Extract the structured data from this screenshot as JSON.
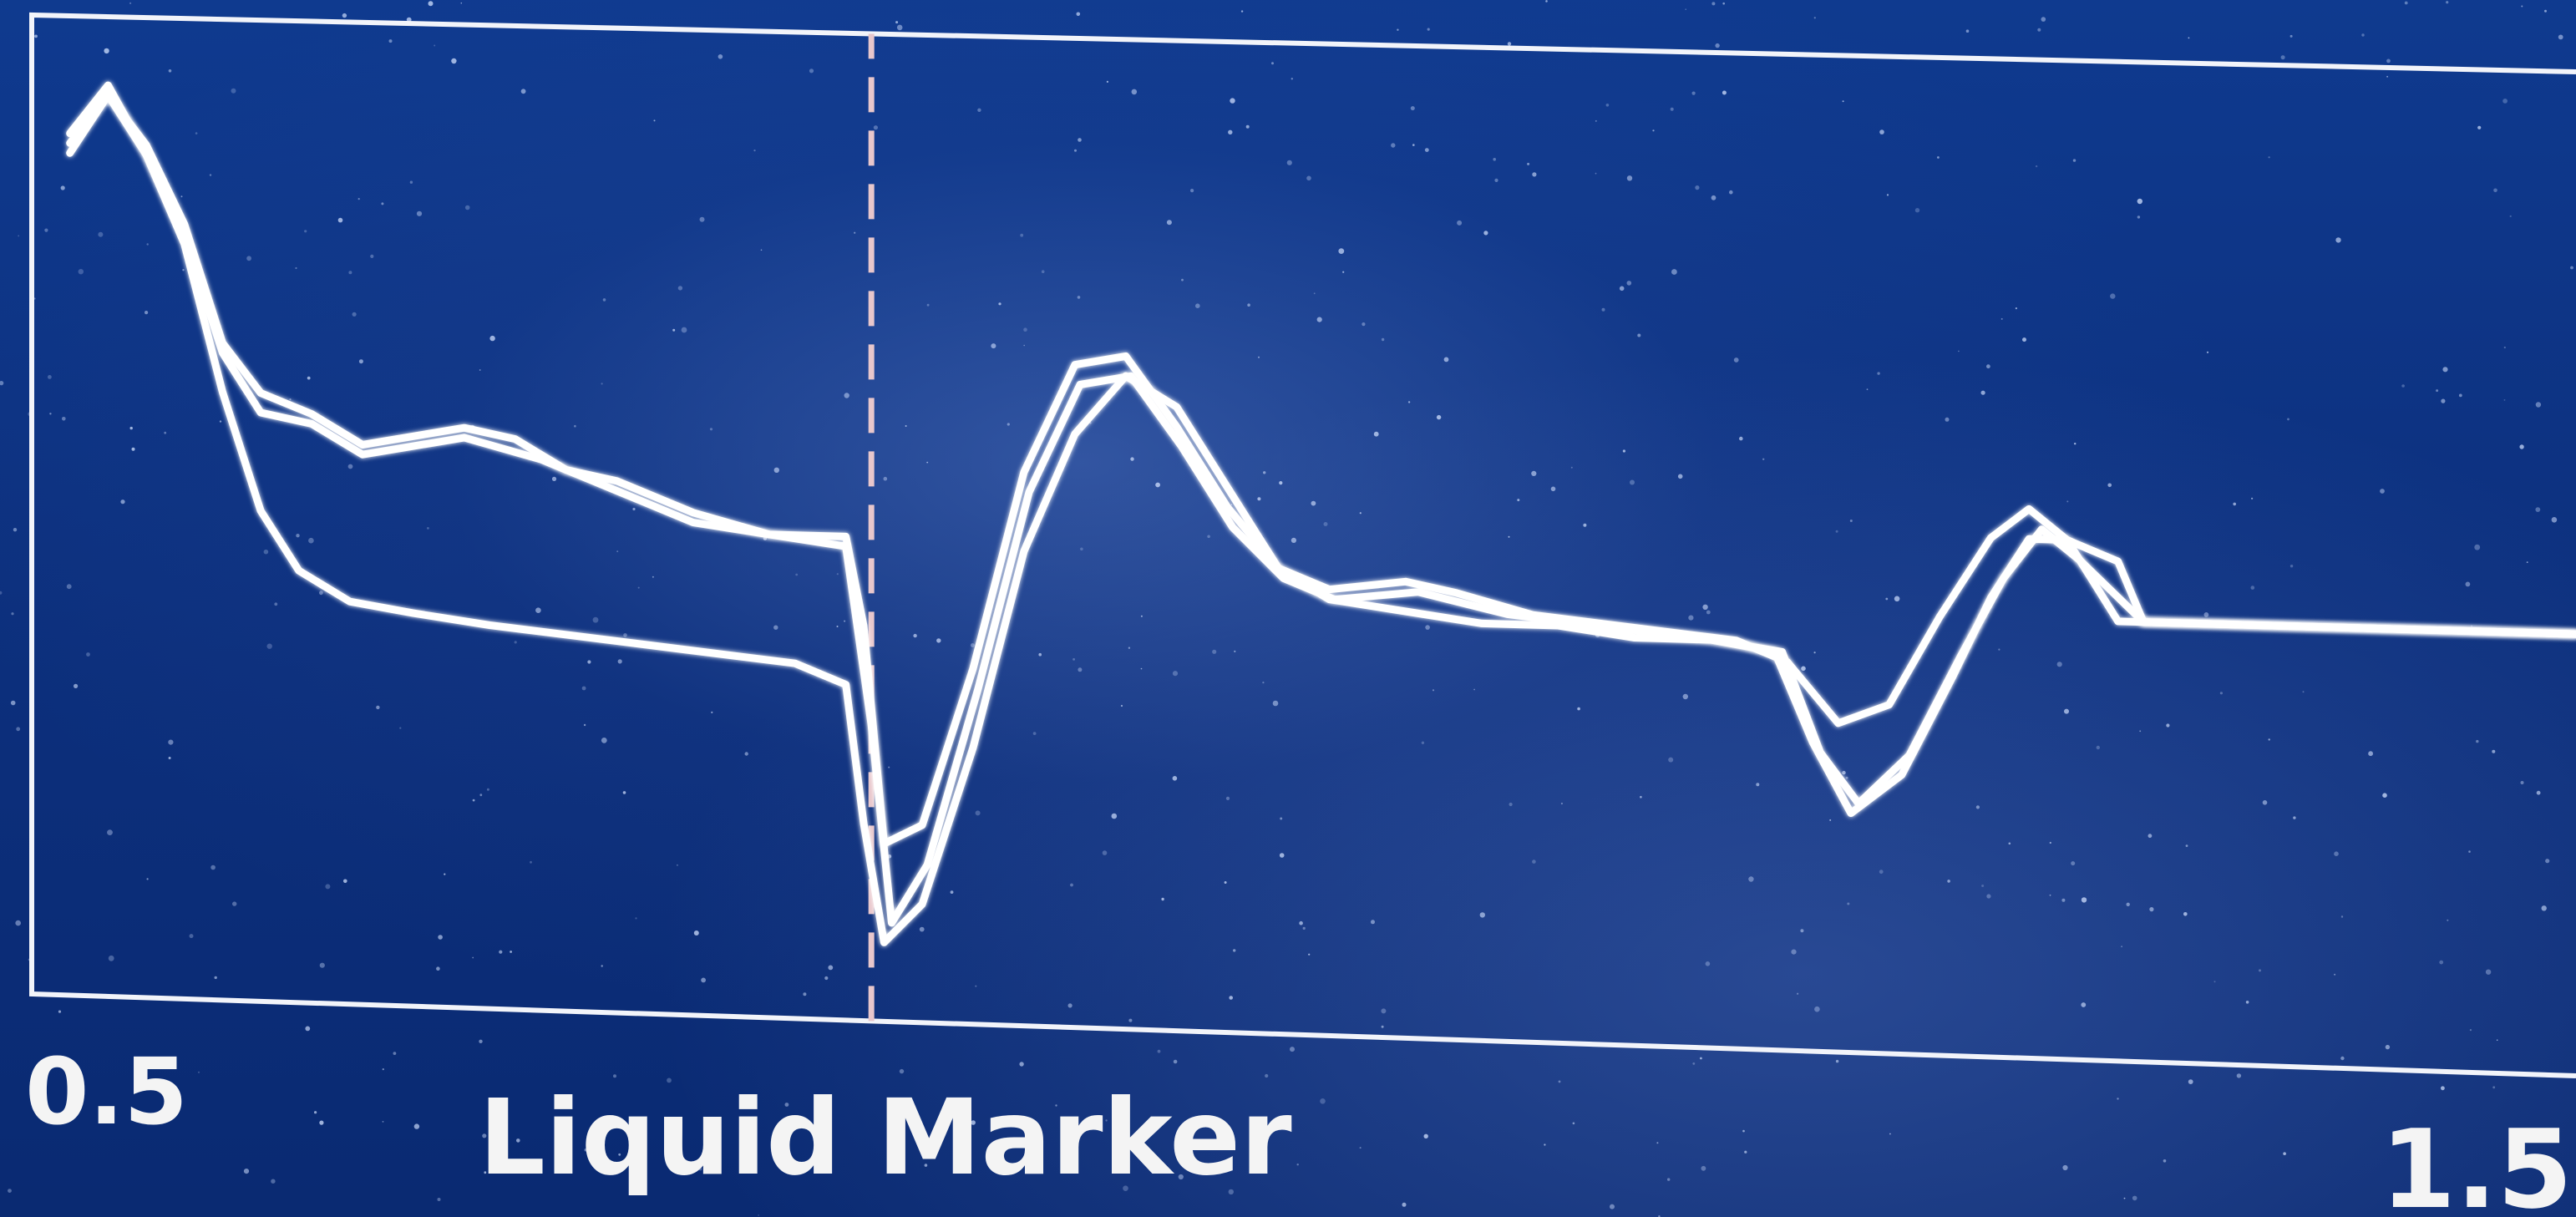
{
  "chart_data": {
    "type": "line",
    "title": "",
    "xlabel": "Liquid Marker",
    "xlim": [
      0.5,
      1.5
    ],
    "x_tick_labels": [
      "0.5",
      "1.5"
    ],
    "grid": false,
    "marker_line": {
      "x": 0.83,
      "style": "dashed",
      "color": "#e8c7cc"
    },
    "line_color": "#ffffff",
    "series": [
      {
        "points": [
          [
            0.515,
            0.88
          ],
          [
            0.53,
            0.93
          ],
          [
            0.545,
            0.86
          ],
          [
            0.56,
            0.77
          ],
          [
            0.575,
            0.62
          ],
          [
            0.59,
            0.5
          ],
          [
            0.605,
            0.44
          ],
          [
            0.625,
            0.41
          ],
          [
            0.65,
            0.4
          ],
          [
            0.68,
            0.39
          ],
          [
            0.72,
            0.38
          ],
          [
            0.76,
            0.37
          ],
          [
            0.8,
            0.36
          ],
          [
            0.82,
            0.34
          ],
          [
            0.827,
            0.2
          ],
          [
            0.835,
            0.08
          ],
          [
            0.85,
            0.12
          ],
          [
            0.87,
            0.28
          ],
          [
            0.89,
            0.48
          ],
          [
            0.91,
            0.6
          ],
          [
            0.93,
            0.66
          ],
          [
            0.95,
            0.63
          ],
          [
            0.97,
            0.55
          ],
          [
            0.99,
            0.47
          ],
          [
            1.01,
            0.44
          ],
          [
            1.04,
            0.43
          ],
          [
            1.07,
            0.42
          ],
          [
            1.1,
            0.42
          ],
          [
            1.13,
            0.41
          ],
          [
            1.16,
            0.41
          ],
          [
            1.185,
            0.4
          ],
          [
            1.2,
            0.31
          ],
          [
            1.215,
            0.24
          ],
          [
            1.235,
            0.28
          ],
          [
            1.255,
            0.38
          ],
          [
            1.27,
            0.46
          ],
          [
            1.285,
            0.52
          ],
          [
            1.3,
            0.52
          ],
          [
            1.32,
            0.44
          ],
          [
            1.35,
            0.44
          ],
          [
            1.4,
            0.44
          ],
          [
            1.45,
            0.44
          ],
          [
            1.5,
            0.44
          ]
        ]
      },
      {
        "points": [
          [
            0.515,
            0.86
          ],
          [
            0.53,
            0.92
          ],
          [
            0.545,
            0.87
          ],
          [
            0.56,
            0.79
          ],
          [
            0.575,
            0.67
          ],
          [
            0.59,
            0.62
          ],
          [
            0.61,
            0.6
          ],
          [
            0.63,
            0.57
          ],
          [
            0.65,
            0.58
          ],
          [
            0.67,
            0.59
          ],
          [
            0.69,
            0.58
          ],
          [
            0.71,
            0.55
          ],
          [
            0.73,
            0.54
          ],
          [
            0.76,
            0.51
          ],
          [
            0.79,
            0.49
          ],
          [
            0.82,
            0.49
          ],
          [
            0.827,
            0.4
          ],
          [
            0.835,
            0.18
          ],
          [
            0.85,
            0.2
          ],
          [
            0.87,
            0.36
          ],
          [
            0.89,
            0.56
          ],
          [
            0.91,
            0.67
          ],
          [
            0.93,
            0.68
          ],
          [
            0.95,
            0.61
          ],
          [
            0.97,
            0.53
          ],
          [
            0.99,
            0.47
          ],
          [
            1.01,
            0.45
          ],
          [
            1.04,
            0.46
          ],
          [
            1.06,
            0.45
          ],
          [
            1.09,
            0.43
          ],
          [
            1.13,
            0.42
          ],
          [
            1.17,
            0.41
          ],
          [
            1.19,
            0.39
          ],
          [
            1.21,
            0.33
          ],
          [
            1.23,
            0.35
          ],
          [
            1.25,
            0.44
          ],
          [
            1.27,
            0.52
          ],
          [
            1.285,
            0.55
          ],
          [
            1.3,
            0.52
          ],
          [
            1.32,
            0.5
          ],
          [
            1.33,
            0.44
          ],
          [
            1.4,
            0.44
          ],
          [
            1.45,
            0.44
          ],
          [
            1.5,
            0.44
          ]
        ]
      },
      {
        "points": [
          [
            0.515,
            0.87
          ],
          [
            0.53,
            0.92
          ],
          [
            0.545,
            0.86
          ],
          [
            0.56,
            0.78
          ],
          [
            0.575,
            0.66
          ],
          [
            0.59,
            0.6
          ],
          [
            0.61,
            0.59
          ],
          [
            0.63,
            0.56
          ],
          [
            0.65,
            0.57
          ],
          [
            0.67,
            0.58
          ],
          [
            0.7,
            0.56
          ],
          [
            0.73,
            0.53
          ],
          [
            0.76,
            0.5
          ],
          [
            0.79,
            0.49
          ],
          [
            0.82,
            0.48
          ],
          [
            0.83,
            0.3
          ],
          [
            0.838,
            0.1
          ],
          [
            0.852,
            0.16
          ],
          [
            0.872,
            0.34
          ],
          [
            0.892,
            0.54
          ],
          [
            0.912,
            0.65
          ],
          [
            0.932,
            0.66
          ],
          [
            0.952,
            0.59
          ],
          [
            0.972,
            0.51
          ],
          [
            0.992,
            0.46
          ],
          [
            1.012,
            0.44
          ],
          [
            1.045,
            0.45
          ],
          [
            1.08,
            0.43
          ],
          [
            1.12,
            0.42
          ],
          [
            1.16,
            0.41
          ],
          [
            1.188,
            0.4
          ],
          [
            1.203,
            0.3
          ],
          [
            1.218,
            0.25
          ],
          [
            1.238,
            0.3
          ],
          [
            1.258,
            0.4
          ],
          [
            1.275,
            0.48
          ],
          [
            1.29,
            0.53
          ],
          [
            1.305,
            0.5
          ],
          [
            1.33,
            0.44
          ],
          [
            1.4,
            0.44
          ],
          [
            1.5,
            0.44
          ]
        ]
      }
    ]
  }
}
